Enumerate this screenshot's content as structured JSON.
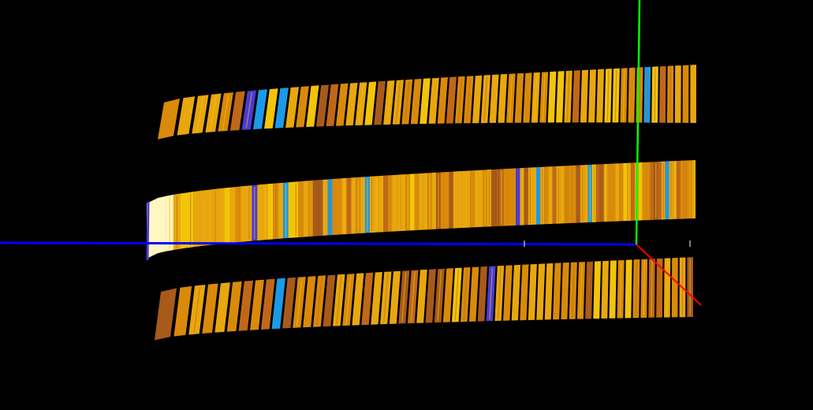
{
  "scene": {
    "background": "#000000",
    "axes": {
      "x": {
        "color": "#ff0000"
      },
      "y": {
        "color": "#00ff00"
      },
      "z": {
        "color": "#0000ff"
      }
    },
    "palette": {
      "gold": "#e8a70e",
      "amber": "#d98a0a",
      "rust": "#c06818",
      "brown": "#a85a1a",
      "yellow": "#f2c40a",
      "blue": "#1a9ae8",
      "indigo": "#4a3ad8",
      "highlight": "#fff6c0"
    },
    "rings": [
      {
        "name": "top-ring",
        "style": "segmented"
      },
      {
        "name": "middle-ring",
        "style": "solid"
      },
      {
        "name": "bottom-ring",
        "style": "segmented"
      }
    ]
  }
}
